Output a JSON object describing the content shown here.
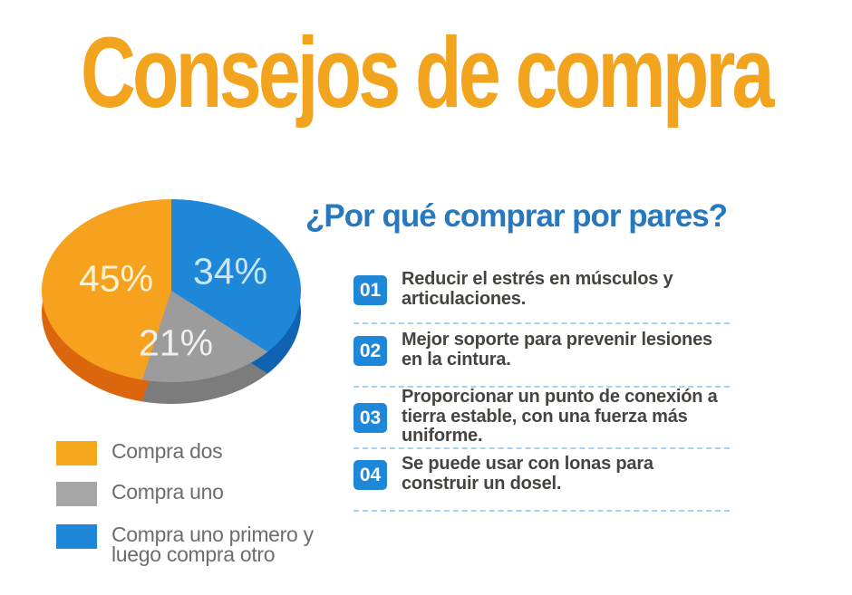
{
  "page": {
    "title": "Consejos de compra"
  },
  "colors": {
    "title_orange": "#F2A41F",
    "heading_blue": "#2878BE",
    "badge_blue": "#1E87D8",
    "separator_blue": "#A8D3EF",
    "legend_text_gray": "#6D6D6D",
    "item_text_dark": "#474340"
  },
  "chart_data": {
    "type": "pie",
    "style_3d": true,
    "legend_position": "bottom-left",
    "order_clockwise_from_top": [
      "34%",
      "21%",
      "45%"
    ],
    "slices": [
      {
        "label": "Compra dos",
        "value": 45,
        "display": "45%",
        "color": "#F6A21E"
      },
      {
        "label": "Compra uno",
        "value": 21,
        "display": "21%",
        "color": "#9C9C9C"
      },
      {
        "label": "Compra uno primero y luego compra otro",
        "value": 34,
        "display": "34%",
        "color": "#1E87D8"
      }
    ]
  },
  "section": {
    "heading": "¿Por qué comprar por pares?",
    "items": [
      {
        "num": "01",
        "text": "Reducir el estrés en músculos y articulaciones."
      },
      {
        "num": "02",
        "text": "Mejor soporte para prevenir lesiones en la cintura."
      },
      {
        "num": "03",
        "text": "Proporcionar un punto de conexión a tierra estable, con una fuerza más uniforme."
      },
      {
        "num": "04",
        "text": "Se puede usar con lonas para construir un dosel."
      }
    ]
  }
}
